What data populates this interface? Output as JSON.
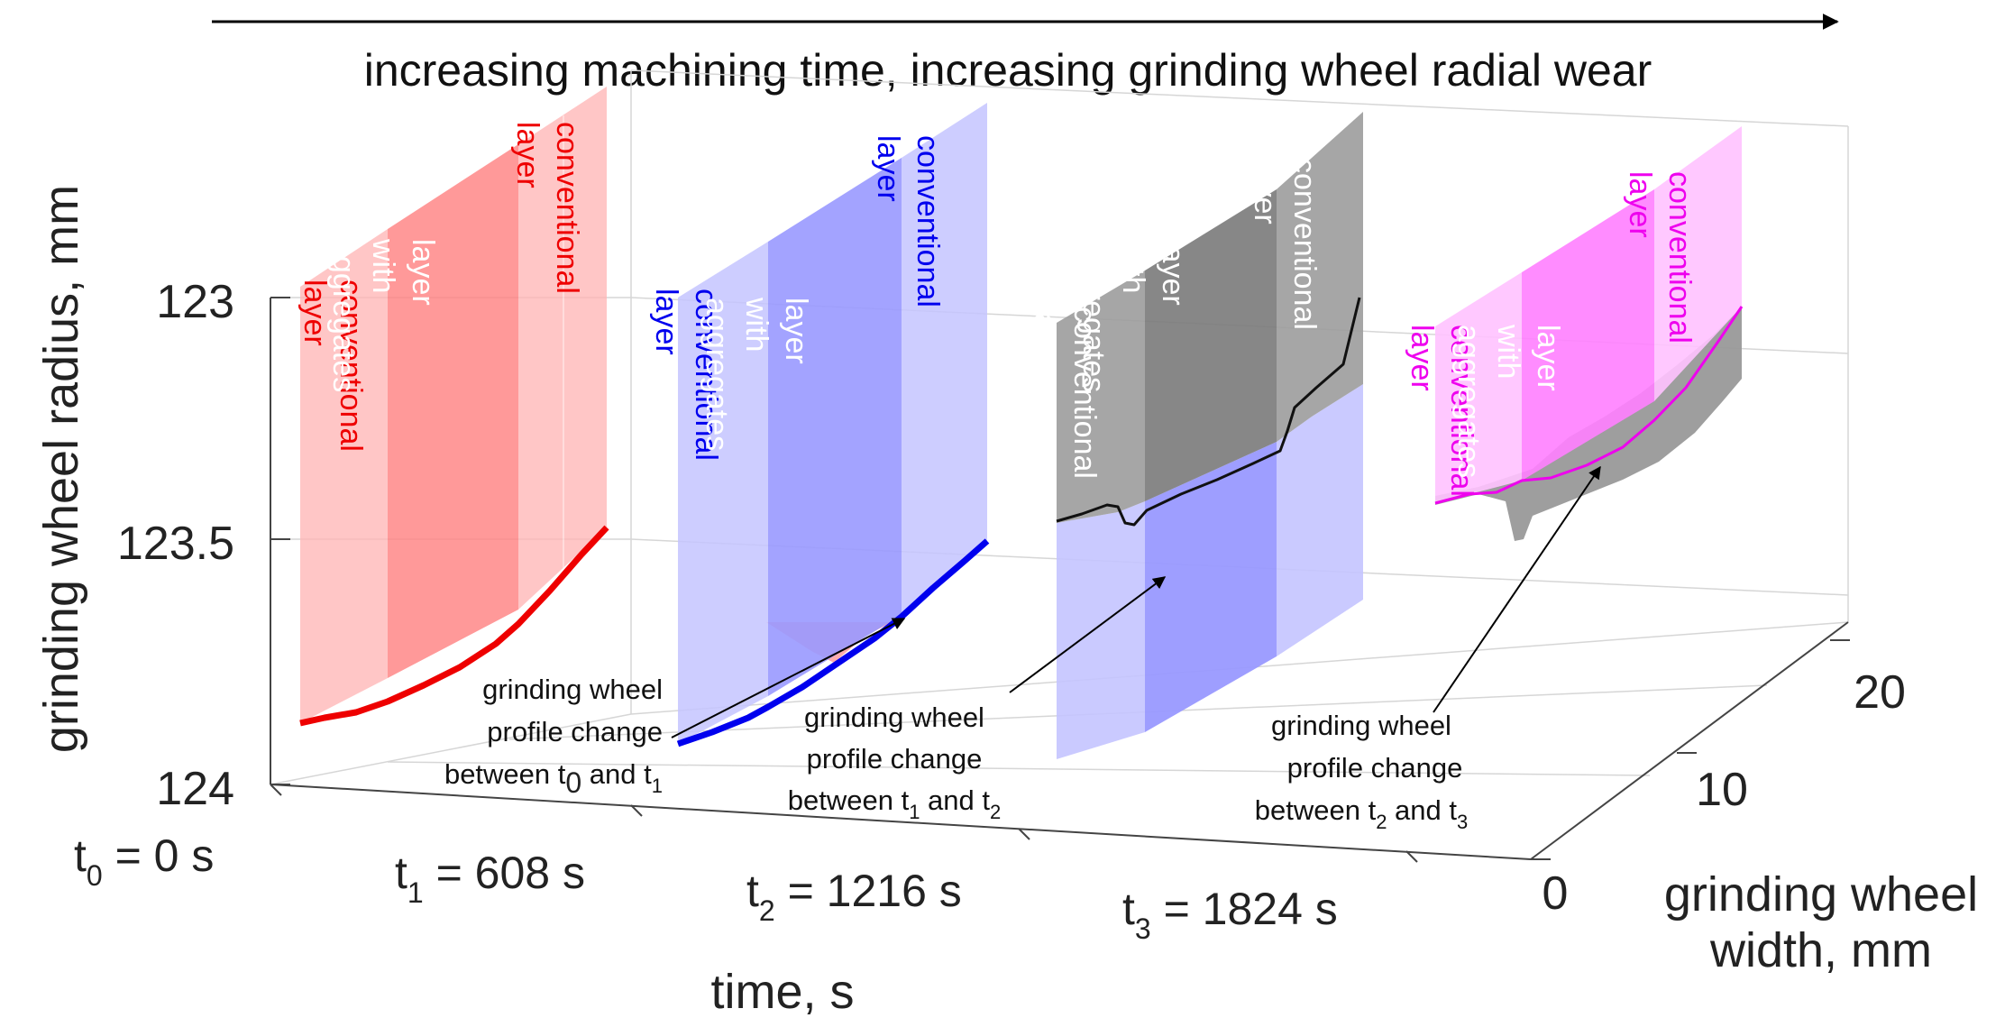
{
  "chart_data": {
    "type": "3d-line",
    "title": "increasing machining time, increasing grinding wheel radial wear",
    "ylabel": "grinding wheel radius, mm",
    "xlabel": "time, s",
    "zlabel": "grinding wheel width, mm",
    "radius_ticks": [
      "123",
      "123.5",
      "124"
    ],
    "width_ticks": [
      "0",
      "10",
      "20"
    ],
    "time_labels": [
      {
        "sym": "t",
        "sub": "0",
        "rest": " = 0 s"
      },
      {
        "sym": "t",
        "sub": "1",
        "rest": " = 608 s"
      },
      {
        "sym": "t",
        "sub": "2",
        "rest": " = 1216 s"
      },
      {
        "sym": "t",
        "sub": "3",
        "rest": " = 1824 s"
      }
    ],
    "layer_labels": {
      "conventional": [
        "conventional",
        "layer"
      ],
      "aggregates": [
        "layer",
        "with",
        "aggregates"
      ]
    },
    "colors": {
      "t0": "#ee0000",
      "t1": "#0000ee",
      "t2": "#111111",
      "t3": "#ee00ee",
      "panel_red": "#ffb3b3",
      "panel_red_dark": "#ff8080",
      "panel_blue": "#c4c4ff",
      "panel_blue_dark": "#9999ff",
      "panel_gray": "#9c9c9c",
      "panel_gray_dark": "#7a7a7a",
      "panel_magenta": "#ffc2ff",
      "panel_magenta_dark": "#ff80ff"
    },
    "annotations": [
      {
        "l1": "grinding wheel",
        "l2": "profile change",
        "l3pre": "between t",
        "s1": "0",
        "mid": " and t",
        "s2": "1"
      },
      {
        "l1": "grinding wheel",
        "l2": "profile change",
        "l3pre": "between t",
        "s1": "1",
        "mid": " and t",
        "s2": "2"
      },
      {
        "l1": "grinding wheel",
        "l2": "profile change",
        "l3pre": "between t",
        "s1": "2",
        "mid": " and t",
        "s2": "3"
      }
    ]
  }
}
